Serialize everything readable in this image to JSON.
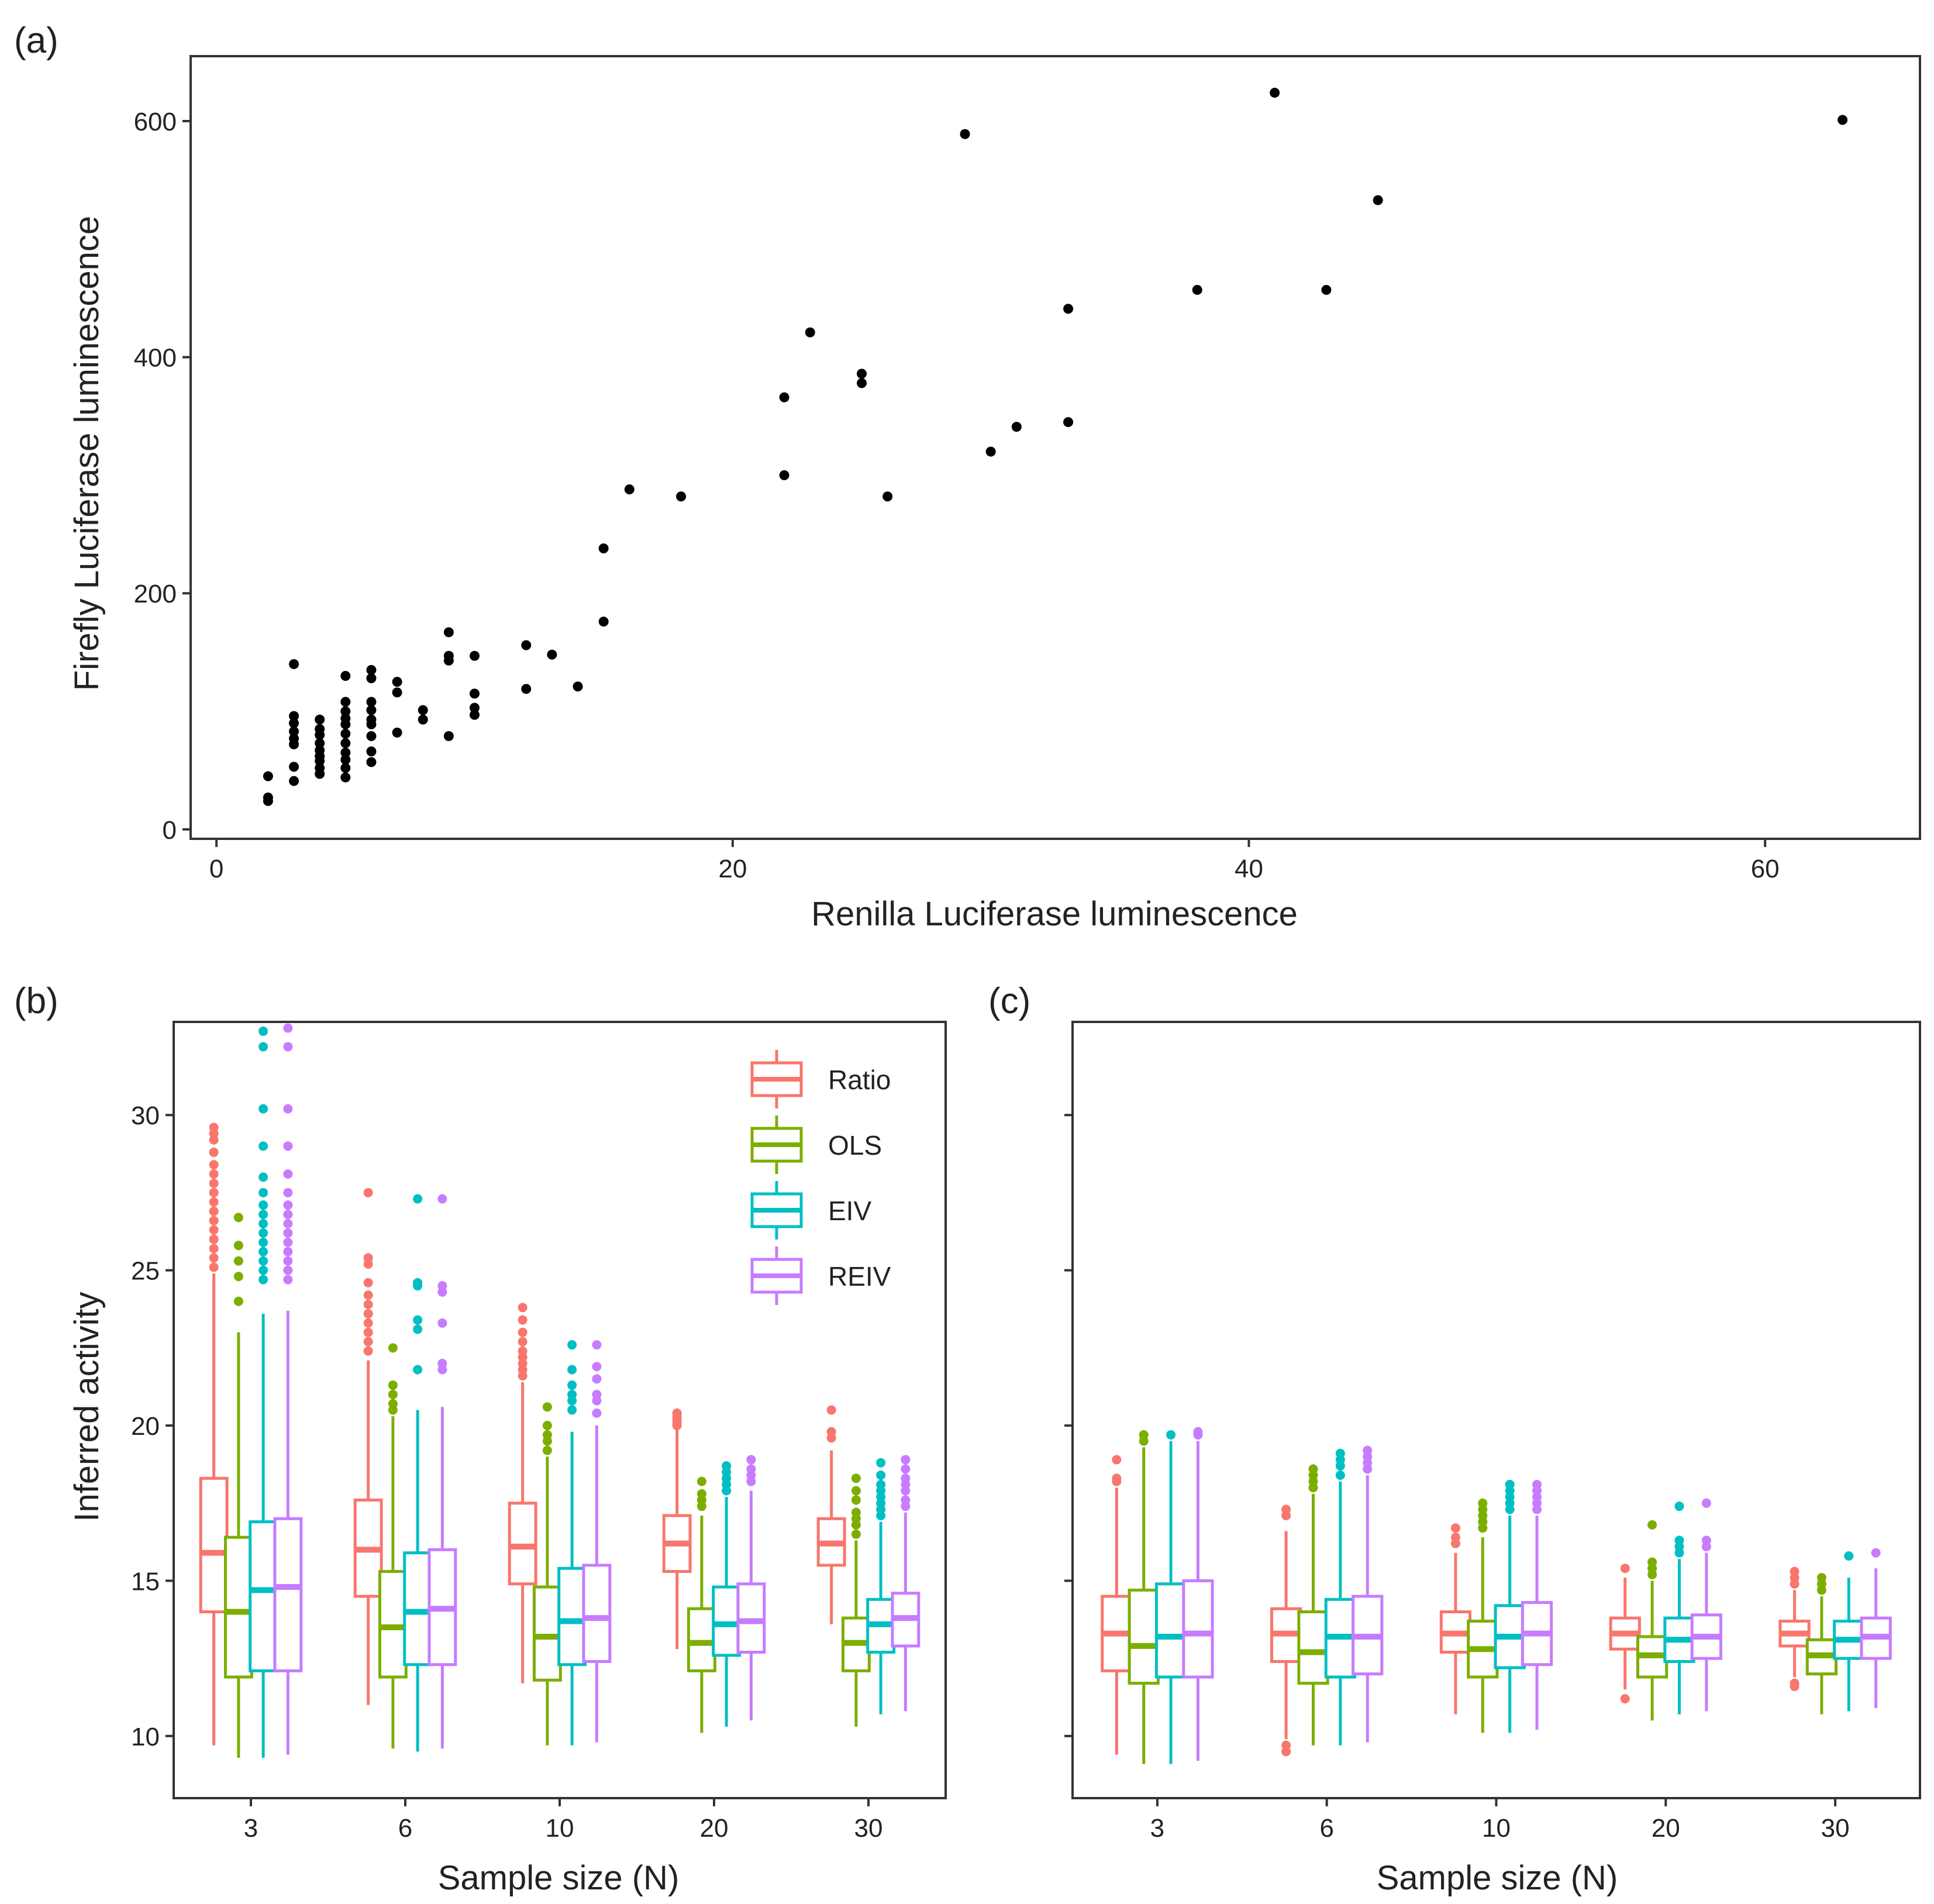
{
  "colors": {
    "Ratio": "#F8766D",
    "OLS": "#7CAE00",
    "EIV": "#00BFC4",
    "REIV": "#C77CFF",
    "point": "#000000",
    "frame": "#333333"
  },
  "chart_data": [
    {
      "panel": "(a)",
      "type": "scatter",
      "xlabel": "Renilla Luciferase luminescence",
      "ylabel": "Firefly Luciferase luminescence",
      "xlim": [
        -1,
        66
      ],
      "ylim": [
        -8,
        655
      ],
      "xticks": [
        0,
        20,
        40,
        60
      ],
      "yticks": [
        0,
        200,
        400,
        600
      ],
      "grid": false,
      "points": [
        [
          2,
          45
        ],
        [
          2,
          27
        ],
        [
          2,
          24
        ],
        [
          3,
          140
        ],
        [
          3,
          96
        ],
        [
          3,
          90
        ],
        [
          3,
          83
        ],
        [
          3,
          77
        ],
        [
          3,
          72
        ],
        [
          3,
          53
        ],
        [
          3,
          41
        ],
        [
          4,
          93
        ],
        [
          4,
          85
        ],
        [
          4,
          80
        ],
        [
          4,
          73
        ],
        [
          4,
          67
        ],
        [
          4,
          62
        ],
        [
          4,
          58
        ],
        [
          4,
          52
        ],
        [
          4,
          47
        ],
        [
          5,
          130
        ],
        [
          5,
          108
        ],
        [
          5,
          100
        ],
        [
          5,
          94
        ],
        [
          5,
          89
        ],
        [
          5,
          81
        ],
        [
          5,
          73
        ],
        [
          5,
          65
        ],
        [
          5,
          59
        ],
        [
          5,
          52
        ],
        [
          5,
          44
        ],
        [
          6,
          135
        ],
        [
          6,
          128
        ],
        [
          6,
          108
        ],
        [
          6,
          101
        ],
        [
          6,
          93
        ],
        [
          6,
          89
        ],
        [
          6,
          79
        ],
        [
          6,
          66
        ],
        [
          6,
          57
        ],
        [
          7,
          125
        ],
        [
          7,
          116
        ],
        [
          7,
          82
        ],
        [
          8,
          101
        ],
        [
          8,
          93
        ],
        [
          9,
          167
        ],
        [
          9,
          147
        ],
        [
          9,
          143
        ],
        [
          9,
          79
        ],
        [
          10,
          147
        ],
        [
          10,
          115
        ],
        [
          10,
          103
        ],
        [
          10,
          97
        ],
        [
          12,
          156
        ],
        [
          12,
          119
        ],
        [
          13,
          148
        ],
        [
          14,
          121
        ],
        [
          15,
          238
        ],
        [
          15,
          176
        ],
        [
          16,
          288
        ],
        [
          18,
          282
        ],
        [
          22,
          366
        ],
        [
          22,
          300
        ],
        [
          23,
          421
        ],
        [
          25,
          386
        ],
        [
          25,
          378
        ],
        [
          26,
          282
        ],
        [
          29,
          589
        ],
        [
          30,
          320
        ],
        [
          31,
          341
        ],
        [
          33,
          441
        ],
        [
          33,
          345
        ],
        [
          38,
          457
        ],
        [
          41,
          624
        ],
        [
          43,
          457
        ],
        [
          45,
          533
        ],
        [
          63,
          601
        ]
      ]
    },
    {
      "panel": "(b)",
      "type": "box",
      "xlabel": "Sample size (N)",
      "ylabel": "Inferred activity",
      "categories": [
        "3",
        "6",
        "10",
        "20",
        "30"
      ],
      "ylim": [
        8.0,
        33.0
      ],
      "yticks": [
        10,
        15,
        20,
        25,
        30
      ],
      "legend": {
        "position": "top-right",
        "entries": [
          "Ratio",
          "OLS",
          "EIV",
          "REIV"
        ]
      },
      "series": [
        {
          "name": "Ratio",
          "boxes": [
            {
              "whisker_low": 9.7,
              "q1": 14.0,
              "median": 15.9,
              "q3": 18.3,
              "whisker_high": 24.9,
              "outliers": [
                25.1,
                25.4,
                25.7,
                26.0,
                26.3,
                26.6,
                26.9,
                27.2,
                27.5,
                27.8,
                28.1,
                28.4,
                28.8,
                29.2,
                29.4,
                29.6
              ]
            },
            {
              "whisker_low": 11.0,
              "q1": 14.5,
              "median": 16.0,
              "q3": 17.6,
              "whisker_high": 22.1,
              "outliers": [
                22.4,
                22.7,
                23.0,
                23.3,
                23.6,
                23.9,
                24.2,
                24.6,
                25.2,
                25.4,
                27.5
              ]
            },
            {
              "whisker_low": 11.7,
              "q1": 14.9,
              "median": 16.1,
              "q3": 17.5,
              "whisker_high": 21.4,
              "outliers": [
                21.6,
                21.8,
                22.0,
                22.2,
                22.4,
                22.7,
                23.0,
                23.4,
                23.8
              ]
            },
            {
              "whisker_low": 12.8,
              "q1": 15.3,
              "median": 16.2,
              "q3": 17.1,
              "whisker_high": 19.9,
              "outliers": [
                20.0,
                20.1,
                20.2,
                20.3,
                20.4
              ]
            },
            {
              "whisker_low": 13.6,
              "q1": 15.5,
              "median": 16.2,
              "q3": 17.0,
              "whisker_high": 19.2,
              "outliers": [
                19.6,
                19.8,
                20.5
              ]
            }
          ]
        },
        {
          "name": "OLS",
          "boxes": [
            {
              "whisker_low": 9.3,
              "q1": 11.9,
              "median": 14.0,
              "q3": 16.4,
              "whisker_high": 23.0,
              "outliers": [
                24.0,
                24.8,
                25.3,
                25.8,
                26.7
              ]
            },
            {
              "whisker_low": 9.6,
              "q1": 11.9,
              "median": 13.5,
              "q3": 15.3,
              "whisker_high": 20.3,
              "outliers": [
                20.5,
                20.7,
                21.0,
                21.3,
                22.5
              ]
            },
            {
              "whisker_low": 9.7,
              "q1": 11.8,
              "median": 13.2,
              "q3": 14.8,
              "whisker_high": 19.0,
              "outliers": [
                19.2,
                19.5,
                19.7,
                20.0,
                20.6
              ]
            },
            {
              "whisker_low": 10.1,
              "q1": 12.1,
              "median": 13.0,
              "q3": 14.1,
              "whisker_high": 17.1,
              "outliers": [
                17.4,
                17.6,
                17.8,
                18.2
              ]
            },
            {
              "whisker_low": 10.3,
              "q1": 12.1,
              "median": 13.0,
              "q3": 13.8,
              "whisker_high": 16.3,
              "outliers": [
                16.5,
                16.8,
                17.0,
                17.2,
                17.6,
                17.9,
                18.3
              ]
            }
          ]
        },
        {
          "name": "EIV",
          "boxes": [
            {
              "whisker_low": 9.3,
              "q1": 12.1,
              "median": 14.7,
              "q3": 16.9,
              "whisker_high": 23.6,
              "outliers": [
                24.7,
                25.0,
                25.3,
                25.6,
                25.9,
                26.2,
                26.5,
                26.8,
                27.1,
                27.5,
                28.0,
                29.0,
                30.2,
                32.2,
                32.7
              ]
            },
            {
              "whisker_low": 9.5,
              "q1": 12.3,
              "median": 14.0,
              "q3": 15.9,
              "whisker_high": 20.5,
              "outliers": [
                21.8,
                23.1,
                23.4,
                24.5,
                24.6,
                27.3
              ]
            },
            {
              "whisker_low": 9.7,
              "q1": 12.3,
              "median": 13.7,
              "q3": 15.4,
              "whisker_high": 19.8,
              "outliers": [
                20.5,
                20.8,
                21.0,
                21.3,
                21.8,
                22.6
              ]
            },
            {
              "whisker_low": 10.3,
              "q1": 12.6,
              "median": 13.6,
              "q3": 14.8,
              "whisker_high": 17.7,
              "outliers": [
                17.9,
                18.1,
                18.3,
                18.5,
                18.7
              ]
            },
            {
              "whisker_low": 10.7,
              "q1": 12.7,
              "median": 13.6,
              "q3": 14.4,
              "whisker_high": 16.9,
              "outliers": [
                17.1,
                17.3,
                17.5,
                17.7,
                17.9,
                18.1,
                18.4,
                18.8
              ]
            }
          ]
        },
        {
          "name": "REIV",
          "boxes": [
            {
              "whisker_low": 9.4,
              "q1": 12.1,
              "median": 14.8,
              "q3": 17.0,
              "whisker_high": 23.7,
              "outliers": [
                24.7,
                25.0,
                25.3,
                25.6,
                25.9,
                26.2,
                26.5,
                26.8,
                27.1,
                27.5,
                28.1,
                29.0,
                30.2,
                32.2,
                32.8
              ]
            },
            {
              "whisker_low": 9.6,
              "q1": 12.3,
              "median": 14.1,
              "q3": 16.0,
              "whisker_high": 20.6,
              "outliers": [
                21.8,
                22.0,
                23.3,
                24.3,
                24.5,
                27.3
              ]
            },
            {
              "whisker_low": 9.8,
              "q1": 12.4,
              "median": 13.8,
              "q3": 15.5,
              "whisker_high": 20.0,
              "outliers": [
                20.4,
                20.8,
                21.0,
                21.5,
                21.9,
                22.6
              ]
            },
            {
              "whisker_low": 10.5,
              "q1": 12.7,
              "median": 13.7,
              "q3": 14.9,
              "whisker_high": 17.9,
              "outliers": [
                18.2,
                18.4,
                18.6,
                18.9
              ]
            },
            {
              "whisker_low": 10.8,
              "q1": 12.9,
              "median": 13.8,
              "q3": 14.6,
              "whisker_high": 17.2,
              "outliers": [
                17.4,
                17.6,
                17.9,
                18.1,
                18.3,
                18.6,
                18.9
              ]
            }
          ]
        }
      ]
    },
    {
      "panel": "(c)",
      "type": "box",
      "xlabel": "Sample size (N)",
      "ylabel": "",
      "categories": [
        "3",
        "6",
        "10",
        "20",
        "30"
      ],
      "ylim": [
        8.0,
        33.0
      ],
      "yticks": [
        10,
        15,
        20,
        25,
        30
      ],
      "series": [
        {
          "name": "Ratio",
          "boxes": [
            {
              "whisker_low": 9.4,
              "q1": 12.1,
              "median": 13.3,
              "q3": 14.5,
              "whisker_high": 18.0,
              "outliers": [
                18.2,
                18.3,
                18.9
              ]
            },
            {
              "whisker_low": 9.9,
              "q1": 12.4,
              "median": 13.3,
              "q3": 14.1,
              "whisker_high": 16.6,
              "outliers": [
                9.5,
                9.7,
                17.1,
                17.3
              ]
            },
            {
              "whisker_low": 10.7,
              "q1": 12.7,
              "median": 13.3,
              "q3": 14.0,
              "whisker_high": 15.9,
              "outliers": [
                16.2,
                16.4,
                16.7
              ]
            },
            {
              "whisker_low": 11.5,
              "q1": 12.8,
              "median": 13.3,
              "q3": 13.8,
              "whisker_high": 15.1,
              "outliers": [
                11.2,
                15.4
              ]
            },
            {
              "whisker_low": 11.9,
              "q1": 12.9,
              "median": 13.3,
              "q3": 13.7,
              "whisker_high": 14.7,
              "outliers": [
                11.6,
                11.7,
                14.9,
                15.1,
                15.3
              ]
            }
          ]
        },
        {
          "name": "OLS",
          "boxes": [
            {
              "whisker_low": 9.1,
              "q1": 11.7,
              "median": 12.9,
              "q3": 14.7,
              "whisker_high": 19.3,
              "outliers": [
                19.5,
                19.7
              ]
            },
            {
              "whisker_low": 9.7,
              "q1": 11.7,
              "median": 12.7,
              "q3": 14.0,
              "whisker_high": 17.8,
              "outliers": [
                18.0,
                18.2,
                18.4,
                18.6
              ]
            },
            {
              "whisker_low": 10.1,
              "q1": 11.9,
              "median": 12.8,
              "q3": 13.7,
              "whisker_high": 16.4,
              "outliers": [
                16.7,
                16.9,
                17.1,
                17.3,
                17.5
              ]
            },
            {
              "whisker_low": 10.5,
              "q1": 11.9,
              "median": 12.6,
              "q3": 13.2,
              "whisker_high": 15.0,
              "outliers": [
                15.2,
                15.4,
                15.6,
                16.8
              ]
            },
            {
              "whisker_low": 10.7,
              "q1": 12.0,
              "median": 12.6,
              "q3": 13.1,
              "whisker_high": 14.5,
              "outliers": [
                14.7,
                14.9,
                15.1
              ]
            }
          ]
        },
        {
          "name": "EIV",
          "boxes": [
            {
              "whisker_low": 9.1,
              "q1": 11.9,
              "median": 13.2,
              "q3": 14.9,
              "whisker_high": 19.5,
              "outliers": [
                19.7
              ]
            },
            {
              "whisker_low": 9.7,
              "q1": 11.9,
              "median": 13.2,
              "q3": 14.4,
              "whisker_high": 18.2,
              "outliers": [
                18.4,
                18.7,
                18.9,
                19.1
              ]
            },
            {
              "whisker_low": 10.1,
              "q1": 12.2,
              "median": 13.2,
              "q3": 14.2,
              "whisker_high": 17.1,
              "outliers": [
                17.3,
                17.5,
                17.7,
                17.9,
                18.1
              ]
            },
            {
              "whisker_low": 10.7,
              "q1": 12.4,
              "median": 13.1,
              "q3": 13.8,
              "whisker_high": 15.7,
              "outliers": [
                15.9,
                16.1,
                16.3,
                17.4
              ]
            },
            {
              "whisker_low": 10.8,
              "q1": 12.5,
              "median": 13.1,
              "q3": 13.7,
              "whisker_high": 15.1,
              "outliers": [
                15.8
              ]
            }
          ]
        },
        {
          "name": "REIV",
          "boxes": [
            {
              "whisker_low": 9.2,
              "q1": 11.9,
              "median": 13.3,
              "q3": 15.0,
              "whisker_high": 19.5,
              "outliers": [
                19.7,
                19.8
              ]
            },
            {
              "whisker_low": 9.8,
              "q1": 12.0,
              "median": 13.2,
              "q3": 14.5,
              "whisker_high": 18.4,
              "outliers": [
                18.6,
                18.8,
                19.0,
                19.2
              ]
            },
            {
              "whisker_low": 10.2,
              "q1": 12.3,
              "median": 13.3,
              "q3": 14.3,
              "whisker_high": 17.1,
              "outliers": [
                17.3,
                17.5,
                17.7,
                17.9,
                18.1
              ]
            },
            {
              "whisker_low": 10.8,
              "q1": 12.5,
              "median": 13.2,
              "q3": 13.9,
              "whisker_high": 15.9,
              "outliers": [
                16.1,
                16.3,
                17.5
              ]
            },
            {
              "whisker_low": 10.9,
              "q1": 12.5,
              "median": 13.2,
              "q3": 13.8,
              "whisker_high": 15.4,
              "outliers": [
                15.9
              ]
            }
          ]
        }
      ]
    }
  ]
}
